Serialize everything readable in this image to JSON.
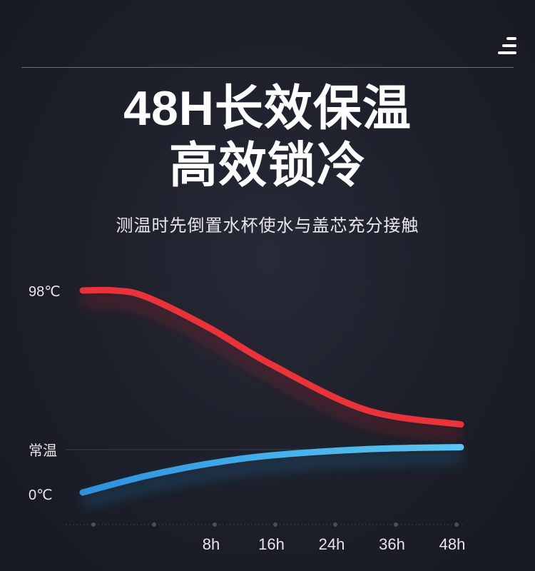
{
  "header": {
    "title_line1": "48H长效保温",
    "title_line2": "高效锁冷",
    "subtitle": "测温时先倒置水杯使水与盖芯充分接触",
    "menu_icon": "menu-icon"
  },
  "colors": {
    "hot": "#e8333b",
    "cold": "#3ea6e6",
    "background": "#1c1f29"
  },
  "chart_data": {
    "type": "line",
    "x_ticks": [
      "8h",
      "16h",
      "24h",
      "36h",
      "48h"
    ],
    "y_labels": [
      "98℃",
      "常温",
      "0℃"
    ],
    "grid": false,
    "series": [
      {
        "role": "hot",
        "points": [
          [
            0,
            98
          ],
          [
            4,
            98
          ],
          [
            8,
            95
          ],
          [
            16,
            80
          ],
          [
            24,
            62
          ],
          [
            36,
            40
          ],
          [
            48,
            33
          ]
        ]
      },
      {
        "role": "cold",
        "points": [
          [
            0,
            0
          ],
          [
            8,
            8
          ],
          [
            16,
            14
          ],
          [
            24,
            18
          ],
          [
            36,
            21
          ],
          [
            48,
            22
          ]
        ]
      }
    ]
  }
}
